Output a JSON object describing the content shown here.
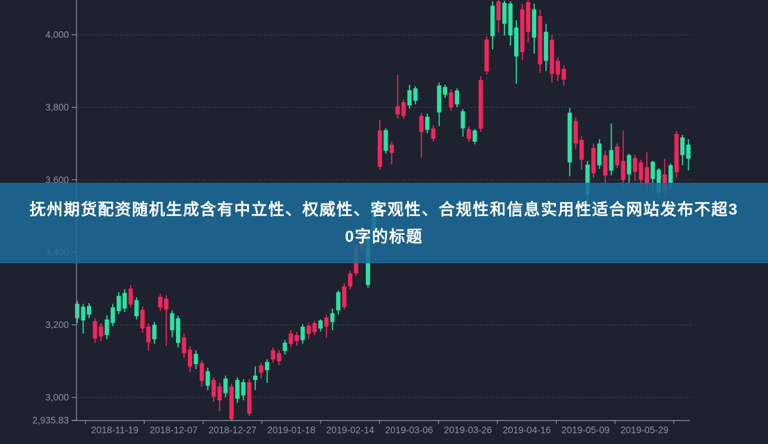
{
  "banner": {
    "line1": "抚州期货配资随机生成含有中立性、权威性、客观性、合规性和信息实用性适合网站发布不超3",
    "line2": "0字的标题",
    "full_title": "抚州期货配资随机生成含有中立性、权威性、客观性、合规性和信息实用性适合网站发布不超30字的标题",
    "background_color": "#1b6b97",
    "text_color": "#ffffff"
  },
  "chart_data": {
    "type": "candlestick",
    "title": "",
    "legend": [],
    "grid": true,
    "y_axis": {
      "tick_labels": [
        "4,000",
        "3,800",
        "3,600",
        "3,400",
        "3,200",
        "3,000"
      ],
      "tick_values": [
        4000,
        3800,
        3600,
        3400,
        3200,
        3000
      ],
      "min_label": "2,935.83",
      "min_value": 2935.83,
      "top_value": 4095.8
    },
    "x_axis": {
      "tick_labels": [
        "2018-11-19",
        "2018-12-07",
        "2018-12-27",
        "2019-01-18",
        "2019-02-14",
        "2019-03-06",
        "2019-03-26",
        "2019-04-16",
        "2019-05-09",
        "2019-05-29"
      ]
    },
    "colors": {
      "up": "#2be2a4",
      "down": "#f0265c",
      "background": "#1e212e",
      "grid": "#878da0",
      "axis": "#9aa1b0",
      "label": "#8d93a8"
    },
    "candles_ohlc": [
      [
        3218,
        3266,
        3205,
        3258
      ],
      [
        3212,
        3258,
        3176,
        3250
      ],
      [
        3228,
        3260,
        3218,
        3252
      ],
      [
        3210,
        3218,
        3150,
        3162
      ],
      [
        3196,
        3205,
        3155,
        3168
      ],
      [
        3172,
        3226,
        3160,
        3215
      ],
      [
        3205,
        3258,
        3196,
        3248
      ],
      [
        3238,
        3290,
        3230,
        3280
      ],
      [
        3245,
        3298,
        3236,
        3288
      ],
      [
        3300,
        3310,
        3248,
        3256
      ],
      [
        3224,
        3276,
        3215,
        3268
      ],
      [
        3242,
        3250,
        3178,
        3190
      ],
      [
        3196,
        3204,
        3128,
        3152
      ],
      [
        3160,
        3208,
        3148,
        3200
      ],
      [
        3278,
        3286,
        3238,
        3248
      ],
      [
        3272,
        3282,
        3142,
        3242
      ],
      [
        3185,
        3240,
        3165,
        3232
      ],
      [
        3150,
        3225,
        3138,
        3218
      ],
      [
        3165,
        3175,
        3108,
        3122
      ],
      [
        3132,
        3140,
        3070,
        3085
      ],
      [
        3092,
        3130,
        3078,
        3120
      ],
      [
        3095,
        3102,
        3030,
        3045
      ],
      [
        3032,
        3082,
        3020,
        3072
      ],
      [
        3048,
        3055,
        2988,
        3002
      ],
      [
        3030,
        3040,
        2962,
        2992
      ],
      [
        3012,
        3060,
        3000,
        3052
      ],
      [
        3030,
        3038,
        2936,
        2940
      ],
      [
        2996,
        3055,
        2985,
        3048
      ],
      [
        3005,
        3050,
        2992,
        3042
      ],
      [
        3042,
        3050,
        2948,
        2955
      ],
      [
        3048,
        3085,
        3020,
        3060
      ],
      [
        3088,
        3095,
        3052,
        3068
      ],
      [
        3075,
        3105,
        3040,
        3098
      ],
      [
        3130,
        3138,
        3095,
        3105
      ],
      [
        3122,
        3130,
        3088,
        3100
      ],
      [
        3128,
        3158,
        3118,
        3151
      ],
      [
        3176,
        3185,
        3138,
        3147
      ],
      [
        3172,
        3180,
        3142,
        3155
      ],
      [
        3158,
        3202,
        3148,
        3195
      ],
      [
        3198,
        3206,
        3162,
        3175
      ],
      [
        3205,
        3212,
        3172,
        3180
      ],
      [
        3190,
        3215,
        3182,
        3212
      ],
      [
        3220,
        3228,
        3165,
        3195
      ],
      [
        3208,
        3245,
        3185,
        3232
      ],
      [
        3240,
        3295,
        3228,
        3290
      ],
      [
        3306,
        3315,
        3242,
        3249
      ],
      [
        3342,
        3350,
        3298,
        3306
      ],
      [
        3415,
        3425,
        3335,
        3342
      ],
      [
        3468,
        3478,
        3400,
        3408
      ],
      [
        3310,
        3462,
        3302,
        3455
      ],
      [
        3448,
        3548,
        3438,
        3540
      ],
      [
        3736,
        3765,
        3628,
        3636
      ],
      [
        3680,
        3742,
        3672,
        3737
      ],
      [
        3697,
        3705,
        3642,
        3674
      ],
      [
        3803,
        3889,
        3768,
        3780
      ],
      [
        3814,
        3822,
        3768,
        3776
      ],
      [
        3805,
        3862,
        3796,
        3847
      ],
      [
        3818,
        3858,
        3808,
        3852
      ],
      [
        3776,
        3785,
        3661,
        3732
      ],
      [
        3738,
        3782,
        3728,
        3774
      ],
      [
        3742,
        3750,
        3705,
        3713
      ],
      [
        3786,
        3868,
        3748,
        3860
      ],
      [
        3834,
        3862,
        3826,
        3856
      ],
      [
        3841,
        3850,
        3790,
        3799
      ],
      [
        3808,
        3852,
        3800,
        3846
      ],
      [
        3742,
        3795,
        3719,
        3789
      ],
      [
        3740,
        3748,
        3704,
        3713
      ],
      [
        3705,
        3740,
        3698,
        3736
      ],
      [
        3875,
        3886,
        3732,
        3741
      ],
      [
        3987,
        3996,
        3890,
        3899
      ],
      [
        3996,
        4092,
        3960,
        4080
      ],
      [
        4092,
        4096,
        4005,
        4040
      ],
      [
        4030,
        4094,
        3998,
        4088
      ],
      [
        3998,
        4092,
        3970,
        4086
      ],
      [
        3940,
        4040,
        3865,
        4020
      ],
      [
        4070,
        4085,
        3930,
        3952
      ],
      [
        4090,
        4096,
        3978,
        4008
      ],
      [
        3992,
        4086,
        3948,
        4070
      ],
      [
        4052,
        4070,
        3895,
        3918
      ],
      [
        3928,
        4030,
        3900,
        4008
      ],
      [
        3986,
        4000,
        3868,
        3892
      ],
      [
        3928,
        3938,
        3872,
        3890
      ],
      [
        3906,
        3915,
        3860,
        3876
      ],
      [
        3648,
        3798,
        3610,
        3785
      ],
      [
        3762,
        3772,
        3685,
        3700
      ],
      [
        3710,
        3720,
        3628,
        3655
      ],
      [
        3560,
        3652,
        3530,
        3642
      ],
      [
        3688,
        3700,
        3605,
        3618
      ],
      [
        3640,
        3712,
        3630,
        3700
      ],
      [
        3668,
        3680,
        3582,
        3612
      ],
      [
        3625,
        3755,
        3612,
        3682
      ],
      [
        3692,
        3700,
        3632,
        3640
      ],
      [
        3652,
        3736,
        3580,
        3600
      ],
      [
        3615,
        3672,
        3590,
        3668
      ],
      [
        3660,
        3668,
        3598,
        3622
      ],
      [
        3648,
        3655,
        3572,
        3600
      ],
      [
        3635,
        3676,
        3565,
        3588
      ],
      [
        3602,
        3652,
        3568,
        3650
      ],
      [
        3565,
        3632,
        3548,
        3628
      ],
      [
        3615,
        3658,
        3552,
        3570
      ],
      [
        3592,
        3645,
        3575,
        3640
      ],
      [
        3726,
        3734,
        3605,
        3621
      ],
      [
        3668,
        3724,
        3640,
        3717
      ],
      [
        3658,
        3712,
        3626,
        3697
      ]
    ]
  }
}
